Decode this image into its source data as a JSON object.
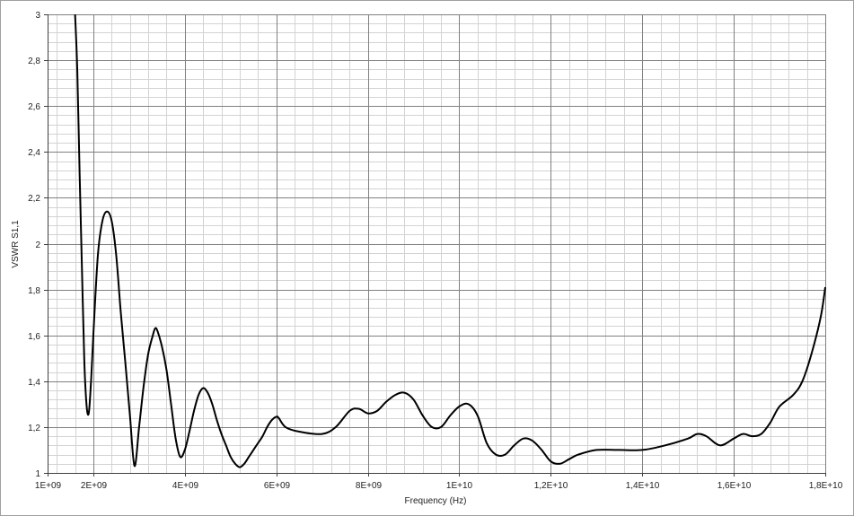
{
  "chart_data": {
    "type": "line",
    "title": "",
    "xlabel": "Frequency (Hz)",
    "ylabel": "VSWR S1,1",
    "xlim": [
      1000000000,
      18000000000
    ],
    "ylim": [
      1,
      3
    ],
    "grid": true,
    "legend": "none",
    "x_ticks": [
      {
        "value": 1000000000,
        "label": "1E+09"
      },
      {
        "value": 2000000000,
        "label": "2E+09"
      },
      {
        "value": 4000000000,
        "label": "4E+09"
      },
      {
        "value": 6000000000,
        "label": "6E+09"
      },
      {
        "value": 8000000000,
        "label": "8E+09"
      },
      {
        "value": 10000000000,
        "label": "1E+10"
      },
      {
        "value": 12000000000,
        "label": "1,2E+10"
      },
      {
        "value": 14000000000,
        "label": "1,4E+10"
      },
      {
        "value": 16000000000,
        "label": "1,6E+10"
      },
      {
        "value": 18000000000,
        "label": "1,8E+10"
      }
    ],
    "y_ticks": [
      {
        "value": 1,
        "label": "1"
      },
      {
        "value": 1.2,
        "label": "1,2"
      },
      {
        "value": 1.4,
        "label": "1,4"
      },
      {
        "value": 1.6,
        "label": "1,6"
      },
      {
        "value": 1.8,
        "label": "1,8"
      },
      {
        "value": 2,
        "label": "2"
      },
      {
        "value": 2.2,
        "label": "2,2"
      },
      {
        "value": 2.4,
        "label": "2,4"
      },
      {
        "value": 2.6,
        "label": "2,6"
      },
      {
        "value": 2.8,
        "label": "2,8"
      },
      {
        "value": 3,
        "label": "3"
      }
    ],
    "colors": {
      "line": "#000000",
      "major_grid": "#808080",
      "minor_grid": "#d3d3d3",
      "axis": "#404040"
    },
    "series": [
      {
        "x": [
          1600000000,
          1650000000,
          1700000000,
          1750000000,
          1800000000,
          1850000000,
          1900000000,
          1950000000,
          2000000000,
          2100000000,
          2200000000,
          2300000000,
          2400000000,
          2500000000,
          2600000000,
          2700000000,
          2800000000,
          2900000000,
          3000000000,
          3100000000,
          3200000000,
          3300000000,
          3350000000,
          3400000000,
          3500000000,
          3600000000,
          3700000000,
          3800000000,
          3900000000,
          4000000000,
          4100000000,
          4200000000,
          4300000000,
          4400000000,
          4500000000,
          4600000000,
          4700000000,
          4800000000,
          4900000000,
          5000000000,
          5100000000,
          5200000000,
          5300000000,
          5400000000,
          5500000000,
          5600000000,
          5700000000,
          5800000000,
          5900000000,
          6000000000,
          6050000000,
          6200000000,
          6500000000,
          7000000000,
          7300000000,
          7600000000,
          7800000000,
          8000000000,
          8200000000,
          8400000000,
          8600000000,
          8800000000,
          9000000000,
          9200000000,
          9400000000,
          9600000000,
          9800000000,
          10000000000,
          10200000000,
          10400000000,
          10600000000,
          10800000000,
          11000000000,
          11200000000,
          11400000000,
          11600000000,
          11800000000,
          12000000000,
          12200000000,
          12400000000,
          12600000000,
          13000000000,
          13500000000,
          14000000000,
          14500000000,
          15000000000,
          15200000000,
          15400000000,
          15700000000,
          16000000000,
          16200000000,
          16400000000,
          16600000000,
          16800000000,
          17000000000,
          17300000000,
          17500000000,
          17700000000,
          17900000000,
          18000000000
        ],
        "values": [
          3.0,
          2.75,
          2.3,
          1.9,
          1.5,
          1.3,
          1.26,
          1.4,
          1.6,
          1.95,
          2.1,
          2.14,
          2.1,
          1.95,
          1.7,
          1.48,
          1.25,
          1.03,
          1.2,
          1.38,
          1.52,
          1.6,
          1.63,
          1.62,
          1.55,
          1.45,
          1.3,
          1.15,
          1.07,
          1.1,
          1.18,
          1.27,
          1.34,
          1.37,
          1.35,
          1.3,
          1.23,
          1.17,
          1.12,
          1.07,
          1.04,
          1.025,
          1.04,
          1.07,
          1.1,
          1.13,
          1.16,
          1.2,
          1.23,
          1.245,
          1.24,
          1.2,
          1.18,
          1.17,
          1.2,
          1.27,
          1.28,
          1.26,
          1.27,
          1.31,
          1.34,
          1.35,
          1.32,
          1.25,
          1.2,
          1.2,
          1.25,
          1.29,
          1.3,
          1.25,
          1.13,
          1.08,
          1.08,
          1.12,
          1.15,
          1.14,
          1.1,
          1.05,
          1.04,
          1.06,
          1.08,
          1.1,
          1.1,
          1.1,
          1.12,
          1.15,
          1.17,
          1.16,
          1.12,
          1.15,
          1.17,
          1.16,
          1.17,
          1.22,
          1.29,
          1.34,
          1.4,
          1.52,
          1.68,
          1.81
        ]
      }
    ]
  }
}
